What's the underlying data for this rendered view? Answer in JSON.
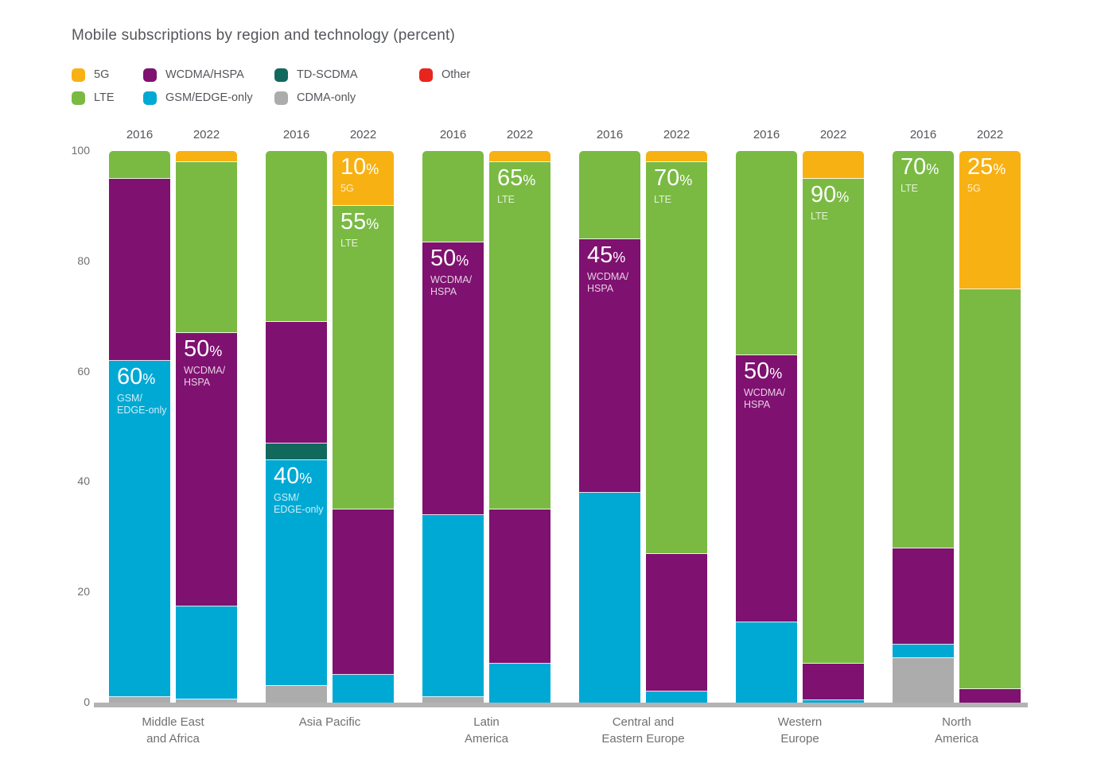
{
  "page": {
    "background": "#FFFFFF"
  },
  "chart_data": {
    "type": "bar",
    "subtype": "stacked-vertical",
    "title": "Mobile subscriptions by region and technology (percent)",
    "unit": "percent",
    "ylim": [
      0,
      100
    ],
    "yticks": [
      0,
      20,
      40,
      60,
      80,
      100
    ],
    "grid": false,
    "legend_position": "top-left",
    "technologies": [
      {
        "id": "5g",
        "label": "5G",
        "color": "#F8B112"
      },
      {
        "id": "lte",
        "label": "LTE",
        "color": "#7ABA43"
      },
      {
        "id": "wcdma",
        "label": "WCDMA/HSPA",
        "color": "#7F1170"
      },
      {
        "id": "gsm",
        "label": "GSM/EDGE-only",
        "color": "#00A9D4"
      },
      {
        "id": "tdscdma",
        "label": "TD-SCDMA",
        "color": "#11695E"
      },
      {
        "id": "cdma",
        "label": "CDMA-only",
        "color": "#ACACAC"
      },
      {
        "id": "other",
        "label": "Other",
        "color": "#E8251D"
      }
    ],
    "legend_columns": [
      [
        "5g",
        "lte"
      ],
      [
        "wcdma",
        "gsm"
      ],
      [
        "tdscdma",
        "cdma"
      ],
      [
        "other"
      ]
    ],
    "groups": [
      {
        "region": [
          "Middle East",
          "and Africa"
        ],
        "bars": [
          {
            "year": "2016",
            "segments": [
              {
                "tech": "cdma",
                "value": 1
              },
              {
                "tech": "gsm",
                "value": 61,
                "callout": {
                  "text": "60%",
                  "sub": [
                    "GSM/",
                    "EDGE-only"
                  ]
                }
              },
              {
                "tech": "wcdma",
                "value": 33
              },
              {
                "tech": "lte",
                "value": 5
              }
            ]
          },
          {
            "year": "2022",
            "segments": [
              {
                "tech": "cdma",
                "value": 0.5
              },
              {
                "tech": "gsm",
                "value": 17
              },
              {
                "tech": "wcdma",
                "value": 49.5,
                "callout": {
                  "text": "50%",
                  "sub": [
                    "WCDMA/",
                    "HSPA"
                  ]
                }
              },
              {
                "tech": "lte",
                "value": 31
              },
              {
                "tech": "5g",
                "value": 2
              }
            ]
          }
        ]
      },
      {
        "region": [
          "Asia Pacific"
        ],
        "bars": [
          {
            "year": "2016",
            "segments": [
              {
                "tech": "cdma",
                "value": 3
              },
              {
                "tech": "gsm",
                "value": 41,
                "callout": {
                  "text": "40%",
                  "sub": [
                    "GSM/",
                    "EDGE-only"
                  ]
                }
              },
              {
                "tech": "tdscdma",
                "value": 3
              },
              {
                "tech": "wcdma",
                "value": 22
              },
              {
                "tech": "lte",
                "value": 31
              }
            ]
          },
          {
            "year": "2022",
            "segments": [
              {
                "tech": "gsm",
                "value": 5
              },
              {
                "tech": "wcdma",
                "value": 30
              },
              {
                "tech": "lte",
                "value": 55,
                "callout": {
                  "text": "55%",
                  "sub": [
                    "LTE"
                  ]
                }
              },
              {
                "tech": "5g",
                "value": 10,
                "callout": {
                  "text": "10%",
                  "sub": [
                    "5G"
                  ]
                }
              }
            ]
          }
        ]
      },
      {
        "region": [
          "Latin",
          "America"
        ],
        "bars": [
          {
            "year": "2016",
            "segments": [
              {
                "tech": "cdma",
                "value": 1
              },
              {
                "tech": "gsm",
                "value": 33
              },
              {
                "tech": "wcdma",
                "value": 49.5,
                "callout": {
                  "text": "50%",
                  "sub": [
                    "WCDMA/",
                    "HSPA"
                  ]
                }
              },
              {
                "tech": "lte",
                "value": 16.5
              }
            ]
          },
          {
            "year": "2022",
            "segments": [
              {
                "tech": "gsm",
                "value": 7
              },
              {
                "tech": "wcdma",
                "value": 28
              },
              {
                "tech": "lte",
                "value": 63,
                "callout": {
                  "text": "65%",
                  "sub": [
                    "LTE"
                  ]
                }
              },
              {
                "tech": "5g",
                "value": 2
              }
            ]
          }
        ]
      },
      {
        "region": [
          "Central and",
          "Eastern Europe"
        ],
        "bars": [
          {
            "year": "2016",
            "segments": [
              {
                "tech": "gsm",
                "value": 38
              },
              {
                "tech": "wcdma",
                "value": 46,
                "callout": {
                  "text": "45%",
                  "sub": [
                    "WCDMA/",
                    "HSPA"
                  ]
                }
              },
              {
                "tech": "lte",
                "value": 16
              }
            ]
          },
          {
            "year": "2022",
            "segments": [
              {
                "tech": "gsm",
                "value": 2
              },
              {
                "tech": "wcdma",
                "value": 25
              },
              {
                "tech": "lte",
                "value": 71,
                "callout": {
                  "text": "70%",
                  "sub": [
                    "LTE"
                  ]
                }
              },
              {
                "tech": "5g",
                "value": 2
              }
            ]
          }
        ]
      },
      {
        "region": [
          "Western",
          "Europe"
        ],
        "bars": [
          {
            "year": "2016",
            "segments": [
              {
                "tech": "gsm",
                "value": 14.5
              },
              {
                "tech": "wcdma",
                "value": 48.5,
                "callout": {
                  "text": "50%",
                  "sub": [
                    "WCDMA/",
                    "HSPA"
                  ]
                }
              },
              {
                "tech": "lte",
                "value": 37
              }
            ]
          },
          {
            "year": "2022",
            "segments": [
              {
                "tech": "gsm",
                "value": 0.5
              },
              {
                "tech": "wcdma",
                "value": 6.5
              },
              {
                "tech": "lte",
                "value": 88,
                "callout": {
                  "text": "90%",
                  "sub": [
                    "LTE"
                  ]
                }
              },
              {
                "tech": "5g",
                "value": 5
              }
            ]
          }
        ]
      },
      {
        "region": [
          "North",
          "America"
        ],
        "bars": [
          {
            "year": "2016",
            "segments": [
              {
                "tech": "cdma",
                "value": 8
              },
              {
                "tech": "gsm",
                "value": 2.5
              },
              {
                "tech": "wcdma",
                "value": 17.5
              },
              {
                "tech": "lte",
                "value": 72,
                "callout": {
                  "text": "70%",
                  "sub": [
                    "LTE"
                  ]
                }
              }
            ]
          },
          {
            "year": "2022",
            "segments": [
              {
                "tech": "wcdma",
                "value": 2.5
              },
              {
                "tech": "lte",
                "value": 72.5
              },
              {
                "tech": "5g",
                "value": 25,
                "callout": {
                  "text": "25%",
                  "sub": [
                    "5G"
                  ]
                }
              }
            ]
          }
        ]
      }
    ]
  }
}
